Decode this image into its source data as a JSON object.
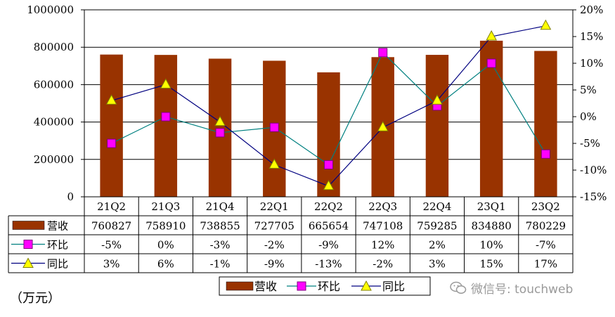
{
  "chart_data": {
    "type": "bar+line",
    "categories": [
      "21Q2",
      "21Q3",
      "21Q4",
      "22Q1",
      "22Q2",
      "22Q3",
      "22Q4",
      "23Q1",
      "23Q2"
    ],
    "series": [
      {
        "name": "营收",
        "type": "bar",
        "axis": "left",
        "color": "#993300",
        "values": [
          760827,
          758910,
          738855,
          727705,
          665654,
          747108,
          759285,
          834880,
          780229
        ]
      },
      {
        "name": "环比",
        "type": "line",
        "axis": "right",
        "color": "#008080",
        "marker_color": "#ff00ff",
        "values": [
          -5,
          0,
          -3,
          -2,
          -9,
          12,
          2,
          10,
          -7
        ],
        "labels": [
          "-5%",
          "0%",
          "-3%",
          "-2%",
          "-9%",
          "12%",
          "2%",
          "10%",
          "-7%"
        ]
      },
      {
        "name": "同比",
        "type": "line",
        "axis": "right",
        "color": "#000080",
        "marker_color": "#ffff00",
        "values": [
          3,
          6,
          -1,
          -9,
          -13,
          -2,
          3,
          15,
          17
        ],
        "labels": [
          "3%",
          "6%",
          "-1%",
          "-9%",
          "-13%",
          "-2%",
          "3%",
          "15%",
          "17%"
        ]
      }
    ],
    "left_axis": {
      "min": 0,
      "max": 1000000,
      "ticks": [
        0,
        200000,
        400000,
        600000,
        800000,
        1000000
      ],
      "tick_labels": [
        "0",
        "200000",
        "400000",
        "600000",
        "800000",
        "1000000"
      ]
    },
    "right_axis": {
      "min": -15,
      "max": 20,
      "ticks": [
        -15,
        -10,
        -5,
        0,
        5,
        10,
        15,
        20
      ],
      "tick_labels": [
        "-15%",
        "-10%",
        "-5%",
        "0%",
        "5%",
        "10%",
        "15%",
        "20%"
      ]
    },
    "revenue_labels": [
      "760827",
      "758910",
      "738855",
      "727705",
      "665654",
      "747108",
      "759285",
      "834880",
      "780229"
    ],
    "legend_position": "bottom-center",
    "unit_label": "（万元）"
  },
  "watermark": "微信号: touchweb"
}
